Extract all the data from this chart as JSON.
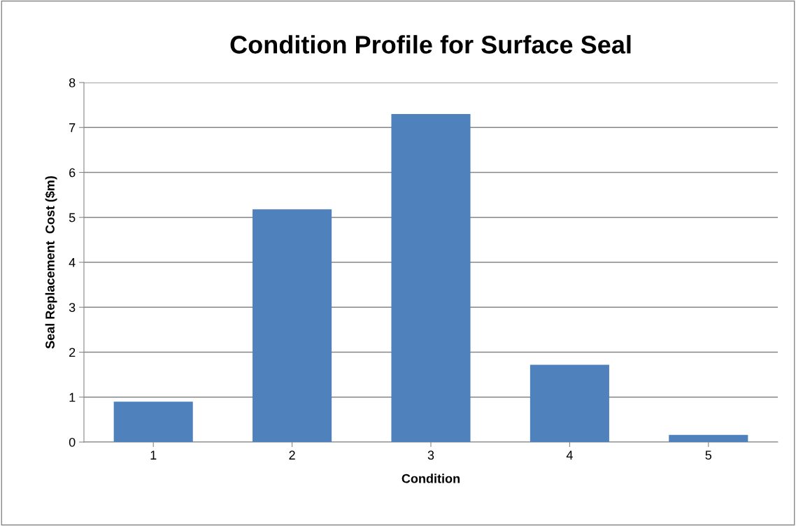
{
  "chart_data": {
    "type": "bar",
    "title": "Condition Profile for Surface Seal",
    "xlabel": "Condition",
    "ylabel": "Seal Replacement  Cost ($m)",
    "categories": [
      "1",
      "2",
      "3",
      "4",
      "5"
    ],
    "values": [
      0.9,
      5.18,
      7.3,
      1.72,
      0.16
    ],
    "color": "#4f81bd",
    "ylim": [
      0,
      8
    ],
    "yticks": [
      0,
      1,
      2,
      3,
      4,
      5,
      6,
      7,
      8
    ],
    "grid": "y",
    "legend": false
  }
}
